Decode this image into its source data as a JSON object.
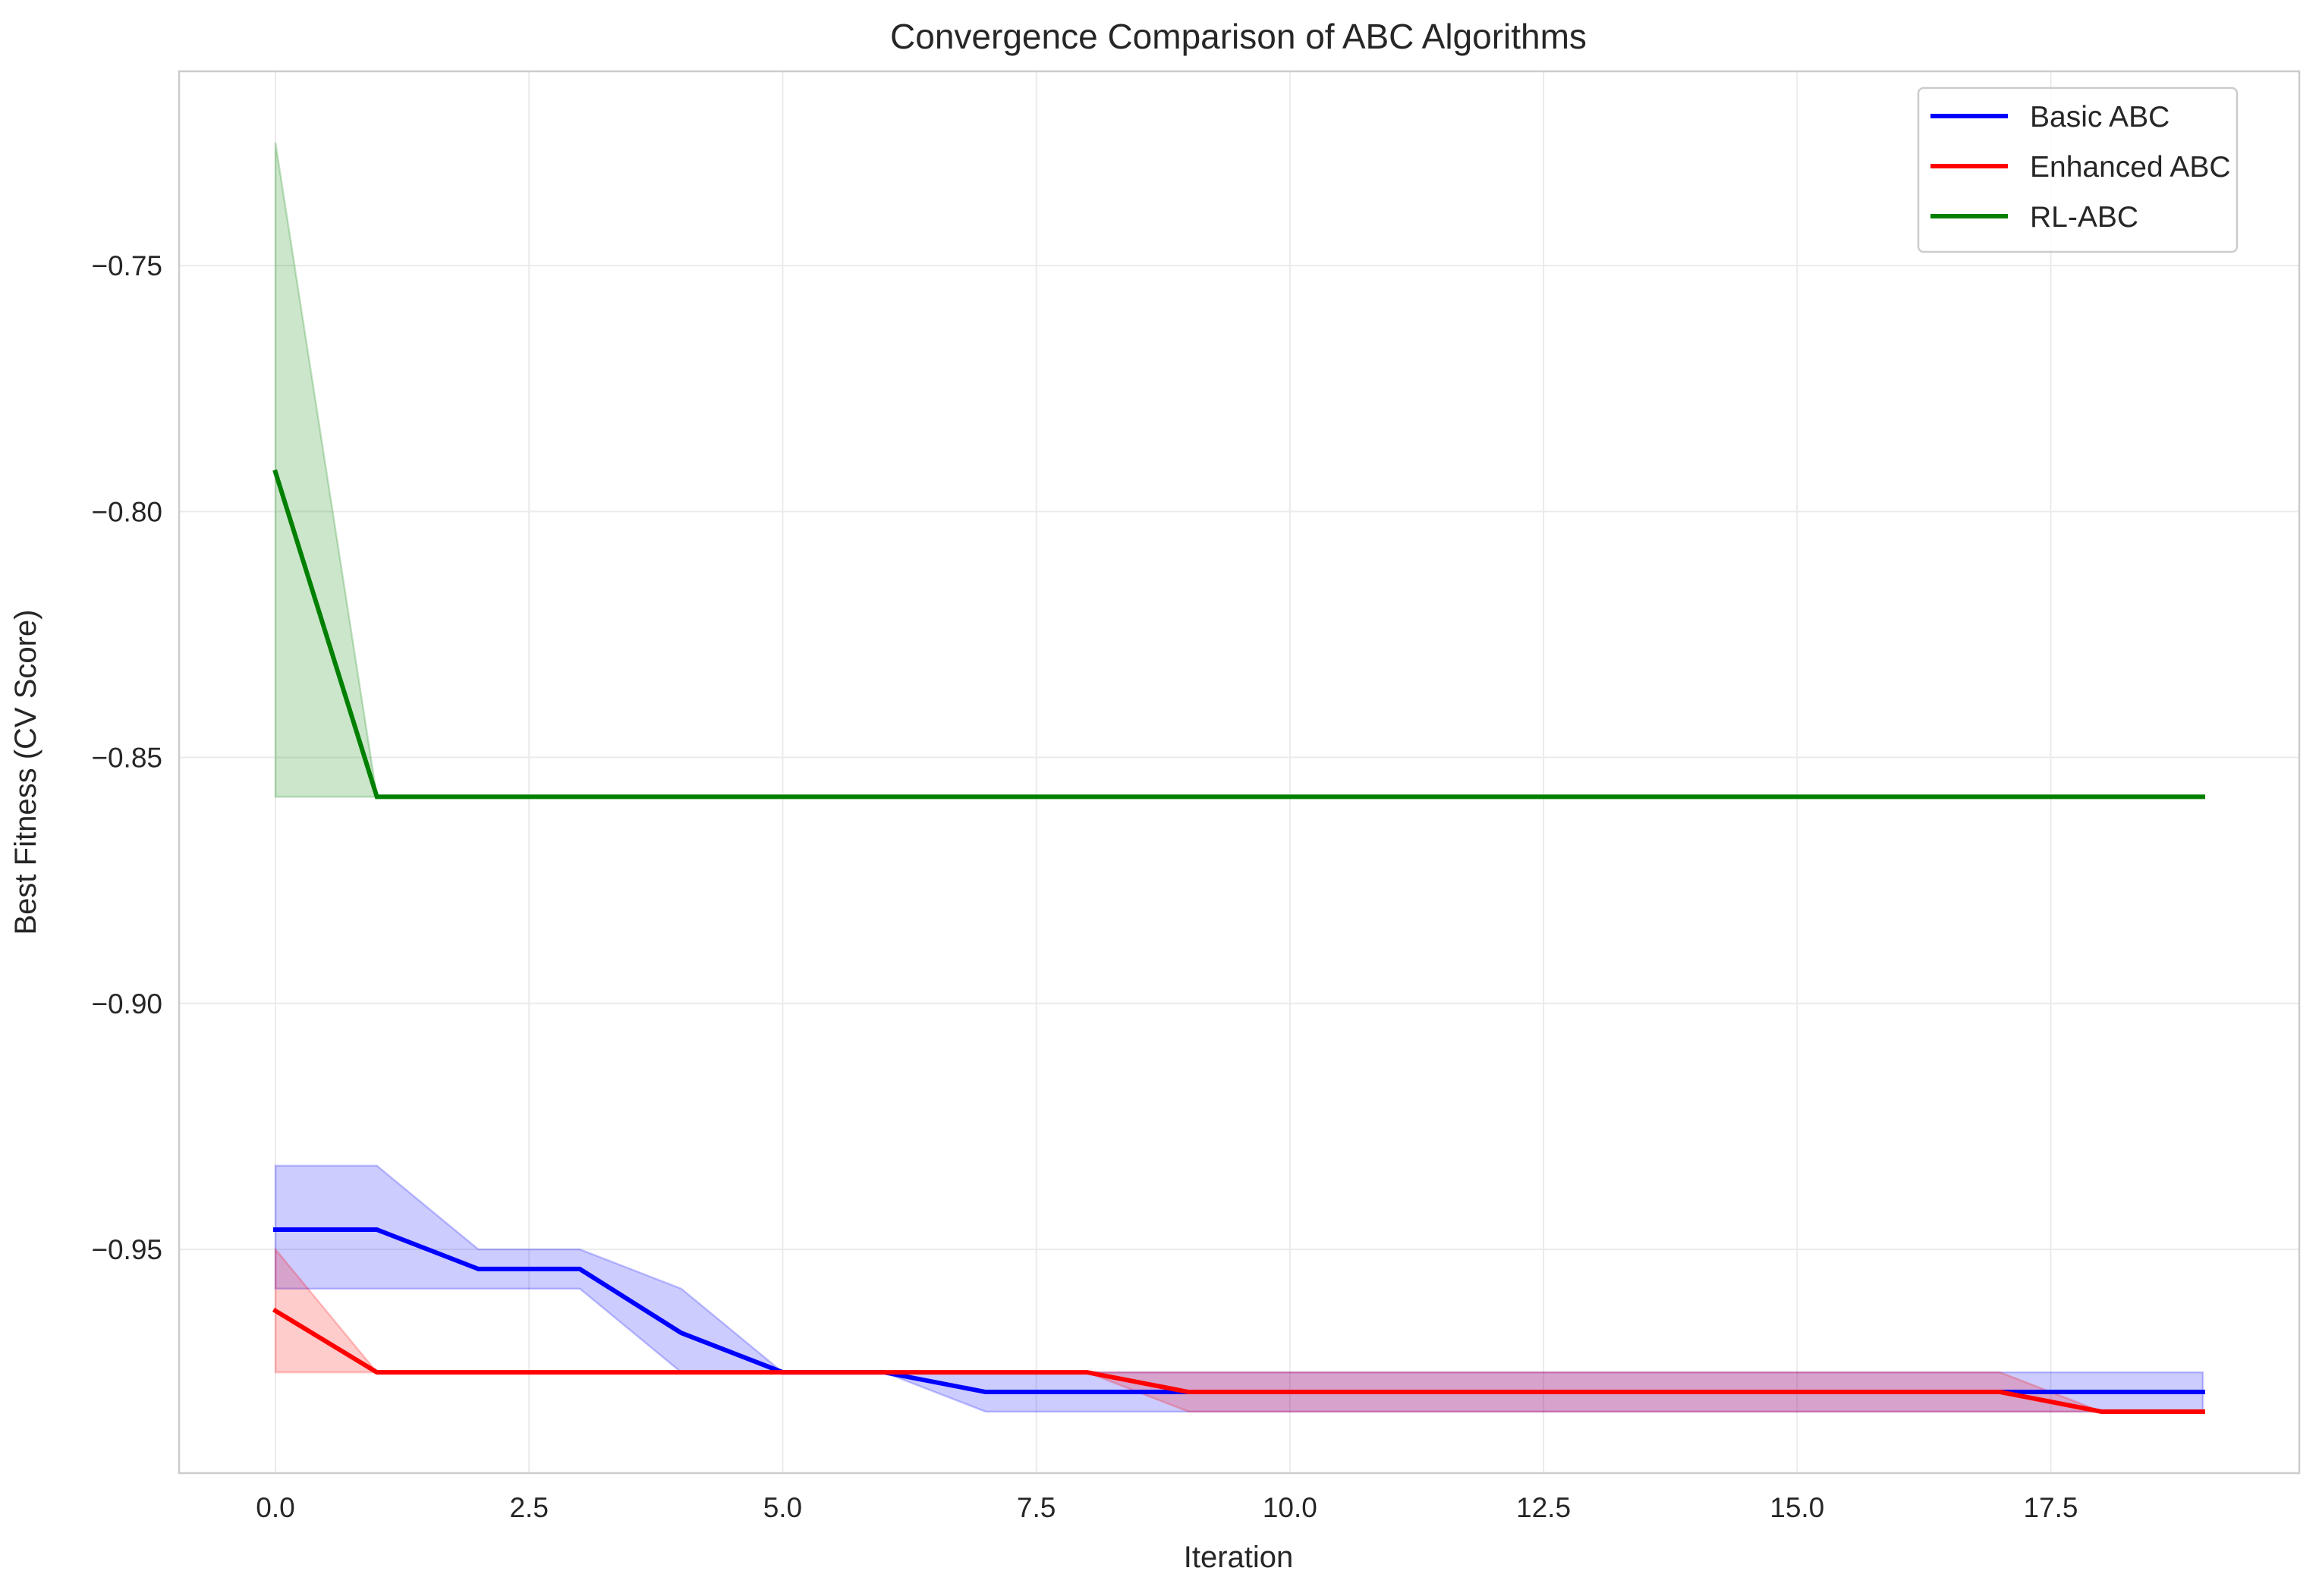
{
  "chart_data": {
    "type": "line",
    "title": "Convergence Comparison of ABC Algorithms",
    "xlabel": "Iteration",
    "ylabel": "Best Fitness (CV Score)",
    "xlim": [
      -0.95,
      19.95
    ],
    "ylim": [
      -0.9955,
      -0.7105
    ],
    "x_ticks": [
      0.0,
      2.5,
      5.0,
      7.5,
      10.0,
      12.5,
      15.0,
      17.5
    ],
    "x_tick_labels": [
      "0.0",
      "2.5",
      "5.0",
      "7.5",
      "10.0",
      "12.5",
      "15.0",
      "17.5"
    ],
    "y_ticks": [
      -0.75,
      -0.8,
      -0.85,
      -0.9,
      -0.95
    ],
    "y_tick_labels": [
      "−0.75",
      "−0.80",
      "−0.85",
      "−0.90",
      "−0.95"
    ],
    "grid": true,
    "legend_position": "top-right",
    "x": [
      0,
      1,
      2,
      3,
      4,
      5,
      6,
      7,
      8,
      9,
      10,
      11,
      12,
      13,
      14,
      15,
      16,
      17,
      18,
      19
    ],
    "series": [
      {
        "name": "Basic ABC",
        "color": "#0000ff",
        "mean": [
          -0.946,
          -0.946,
          -0.954,
          -0.954,
          -0.967,
          -0.975,
          -0.975,
          -0.979,
          -0.979,
          -0.979,
          -0.979,
          -0.979,
          -0.979,
          -0.979,
          -0.979,
          -0.979,
          -0.979,
          -0.979,
          -0.979,
          -0.979
        ],
        "lower": [
          -0.958,
          -0.958,
          -0.958,
          -0.958,
          -0.975,
          -0.975,
          -0.975,
          -0.983,
          -0.983,
          -0.983,
          -0.983,
          -0.983,
          -0.983,
          -0.983,
          -0.983,
          -0.983,
          -0.983,
          -0.983,
          -0.983,
          -0.983
        ],
        "upper": [
          -0.933,
          -0.933,
          -0.95,
          -0.95,
          -0.958,
          -0.975,
          -0.975,
          -0.975,
          -0.975,
          -0.975,
          -0.975,
          -0.975,
          -0.975,
          -0.975,
          -0.975,
          -0.975,
          -0.975,
          -0.975,
          -0.975,
          -0.975
        ]
      },
      {
        "name": "Enhanced ABC",
        "color": "#ff0000",
        "mean": [
          -0.9625,
          -0.975,
          -0.975,
          -0.975,
          -0.975,
          -0.975,
          -0.975,
          -0.975,
          -0.975,
          -0.979,
          -0.979,
          -0.979,
          -0.979,
          -0.979,
          -0.979,
          -0.979,
          -0.979,
          -0.979,
          -0.983,
          -0.983
        ],
        "lower": [
          -0.975,
          -0.975,
          -0.975,
          -0.975,
          -0.975,
          -0.975,
          -0.975,
          -0.975,
          -0.975,
          -0.983,
          -0.983,
          -0.983,
          -0.983,
          -0.983,
          -0.983,
          -0.983,
          -0.983,
          -0.983,
          -0.983,
          -0.983
        ],
        "upper": [
          -0.95,
          -0.975,
          -0.975,
          -0.975,
          -0.975,
          -0.975,
          -0.975,
          -0.975,
          -0.975,
          -0.975,
          -0.975,
          -0.975,
          -0.975,
          -0.975,
          -0.975,
          -0.975,
          -0.975,
          -0.975,
          -0.983,
          -0.983
        ]
      },
      {
        "name": "RL-ABC",
        "color": "#008000",
        "mean": [
          -0.792,
          -0.858,
          -0.858,
          -0.858,
          -0.858,
          -0.858,
          -0.858,
          -0.858,
          -0.858,
          -0.858,
          -0.858,
          -0.858,
          -0.858,
          -0.858,
          -0.858,
          -0.858,
          -0.858,
          -0.858,
          -0.858,
          -0.858
        ],
        "lower": [
          -0.858,
          -0.858,
          -0.858,
          -0.858,
          -0.858,
          -0.858,
          -0.858,
          -0.858,
          -0.858,
          -0.858,
          -0.858,
          -0.858,
          -0.858,
          -0.858,
          -0.858,
          -0.858,
          -0.858,
          -0.858,
          -0.858,
          -0.858
        ],
        "upper": [
          -0.725,
          -0.858,
          -0.858,
          -0.858,
          -0.858,
          -0.858,
          -0.858,
          -0.858,
          -0.858,
          -0.858,
          -0.858,
          -0.858,
          -0.858,
          -0.858,
          -0.858,
          -0.858,
          -0.858,
          -0.858,
          -0.858,
          -0.858
        ]
      }
    ]
  }
}
